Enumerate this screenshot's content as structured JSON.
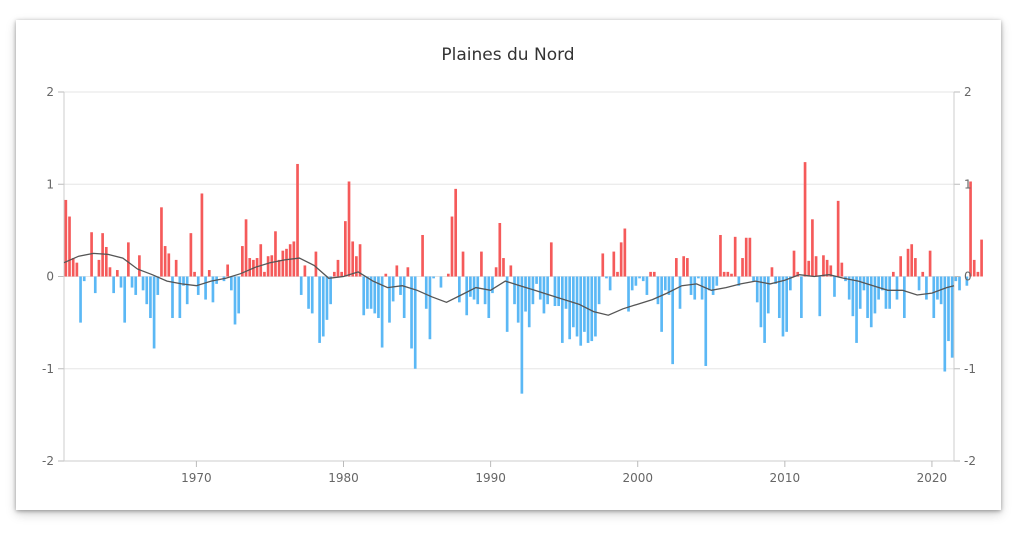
{
  "chart_data": {
    "type": "bar",
    "title": "Plaines du Nord",
    "xlabel": "",
    "ylabel": "",
    "ylim": [
      -2,
      2
    ],
    "xlim": [
      1961,
      2021.5
    ],
    "y_ticks": [
      "2",
      "1",
      "0",
      "-1",
      "-2"
    ],
    "x_ticks": [
      "1970",
      "1980",
      "1990",
      "2000",
      "2010",
      "2020"
    ],
    "grid": true,
    "legend": "none",
    "colors": {
      "positive": "#f55a5a",
      "negative": "#5bb8f5",
      "line": "#555555",
      "grid": "#e6e6e6"
    },
    "series": [
      {
        "type": "bar",
        "x_start": 1961,
        "step_years": 0.25,
        "values": [
          0.83,
          0.65,
          0.2,
          0.15,
          -0.5,
          -0.05,
          0.0,
          0.48,
          -0.18,
          0.18,
          0.47,
          0.32,
          0.1,
          -0.18,
          0.07,
          -0.12,
          -0.5,
          0.37,
          -0.12,
          -0.2,
          0.23,
          -0.15,
          -0.3,
          -0.45,
          -0.78,
          -0.2,
          0.75,
          0.33,
          0.25,
          -0.45,
          0.18,
          -0.45,
          -0.1,
          -0.3,
          0.47,
          0.05,
          -0.2,
          0.9,
          -0.25,
          0.07,
          -0.28,
          -0.08,
          0.0,
          -0.05,
          0.13,
          -0.15,
          -0.52,
          -0.4,
          0.33,
          0.62,
          0.2,
          0.18,
          0.2,
          0.35,
          0.05,
          0.22,
          0.23,
          0.49,
          0.18,
          0.28,
          0.3,
          0.35,
          0.38,
          1.22,
          -0.2,
          0.12,
          -0.35,
          -0.4,
          0.27,
          -0.72,
          -0.65,
          -0.47,
          -0.3,
          0.05,
          0.18,
          0.05,
          0.6,
          1.03,
          0.38,
          0.22,
          0.35,
          -0.42,
          -0.35,
          -0.35,
          -0.4,
          -0.45,
          -0.77,
          0.03,
          -0.5,
          -0.27,
          0.12,
          -0.2,
          -0.45,
          0.1,
          -0.78,
          -1.0,
          0.0,
          0.45,
          -0.35,
          -0.68,
          -0.02,
          0.0,
          -0.12,
          0.0,
          0.03,
          0.65,
          0.95,
          -0.28,
          0.27,
          -0.42,
          -0.22,
          -0.25,
          -0.3,
          0.27,
          -0.3,
          -0.45,
          -0.18,
          0.1,
          0.58,
          0.2,
          -0.6,
          0.12,
          -0.3,
          -0.5,
          -1.27,
          -0.38,
          -0.55,
          -0.3,
          -0.08,
          -0.25,
          -0.4,
          -0.3,
          0.37,
          -0.32,
          -0.32,
          -0.72,
          -0.35,
          -0.68,
          -0.55,
          -0.65,
          -0.75,
          -0.6,
          -0.72,
          -0.7,
          -0.65,
          -0.3,
          0.25,
          -0.02,
          -0.15,
          0.27,
          0.05,
          0.37,
          0.52,
          -0.38,
          -0.15,
          -0.1,
          -0.02,
          -0.05,
          -0.2,
          0.05,
          0.05,
          -0.3,
          -0.6,
          -0.15,
          -0.2,
          -0.95,
          0.2,
          -0.35,
          0.22,
          0.2,
          -0.2,
          -0.25,
          -0.02,
          -0.25,
          -0.97,
          -0.15,
          -0.2,
          -0.1,
          0.45,
          0.05,
          0.05,
          0.03,
          0.43,
          -0.1,
          0.2,
          0.42,
          0.42,
          -0.05,
          -0.28,
          -0.55,
          -0.72,
          -0.4,
          0.1,
          -0.08,
          -0.45,
          -0.65,
          -0.6,
          -0.15,
          0.28,
          0.05,
          -0.45,
          1.24,
          0.17,
          0.62,
          0.22,
          -0.43,
          0.23,
          0.18,
          0.12,
          -0.22,
          0.82,
          0.15,
          -0.05,
          -0.25,
          -0.43,
          -0.72,
          -0.35,
          -0.15,
          -0.45,
          -0.55,
          -0.4,
          -0.25,
          -0.15,
          -0.35,
          -0.35,
          0.05,
          -0.25,
          0.22,
          -0.45,
          0.3,
          0.35,
          0.2,
          -0.15,
          0.05,
          -0.25,
          0.28,
          -0.45,
          -0.25,
          -0.3,
          -1.03,
          -0.7,
          -0.88,
          -0.05,
          -0.15,
          0.0,
          -0.1,
          1.03,
          0.18,
          0.05,
          0.4
        ]
      },
      {
        "type": "line",
        "x": [
          1961,
          1962,
          1963,
          1964,
          1965,
          1966,
          1967,
          1968,
          1969,
          1970,
          1971,
          1972,
          1973,
          1974,
          1975,
          1976,
          1977,
          1978,
          1979,
          1980,
          1981,
          1982,
          1983,
          1984,
          1985,
          1986,
          1987,
          1988,
          1989,
          1990,
          1991,
          1992,
          1993,
          1994,
          1995,
          1996,
          1997,
          1998,
          1999,
          2000,
          2001,
          2002,
          2003,
          2004,
          2005,
          2006,
          2007,
          2008,
          2009,
          2010,
          2011,
          2012,
          2013,
          2014,
          2015,
          2016,
          2017,
          2018,
          2019,
          2020,
          2021,
          2021.5
        ],
        "y": [
          0.15,
          0.22,
          0.25,
          0.24,
          0.2,
          0.08,
          0.02,
          -0.05,
          -0.08,
          -0.1,
          -0.05,
          -0.02,
          0.03,
          0.1,
          0.15,
          0.18,
          0.2,
          0.12,
          -0.02,
          0.0,
          0.05,
          -0.05,
          -0.12,
          -0.1,
          -0.15,
          -0.22,
          -0.28,
          -0.2,
          -0.12,
          -0.15,
          -0.05,
          -0.1,
          -0.15,
          -0.2,
          -0.25,
          -0.3,
          -0.38,
          -0.42,
          -0.35,
          -0.3,
          -0.25,
          -0.18,
          -0.1,
          -0.08,
          -0.15,
          -0.12,
          -0.08,
          -0.05,
          -0.08,
          -0.04,
          0.02,
          0.0,
          0.02,
          -0.02,
          -0.05,
          -0.1,
          -0.15,
          -0.15,
          -0.2,
          -0.18,
          -0.12,
          -0.1
        ]
      }
    ]
  }
}
